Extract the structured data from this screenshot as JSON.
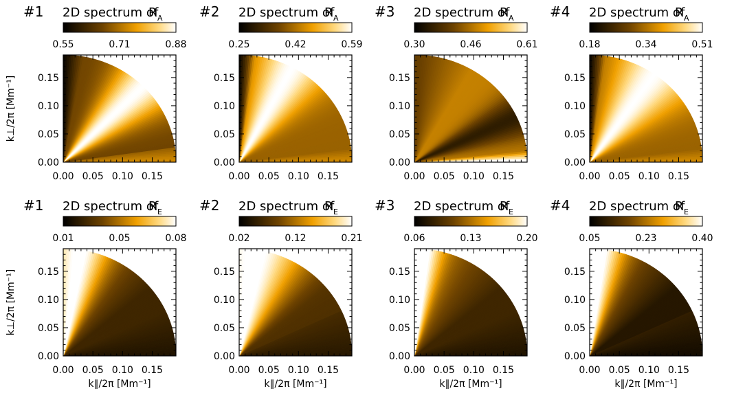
{
  "chart_data": [
    {
      "type": "heatmap",
      "panel": "#1",
      "title_prefix": "2D spectrum of ",
      "quantity": "R",
      "subscript": "A",
      "colorbar_ticks": [
        "0.55",
        "0.71",
        "0.88"
      ],
      "vmin": 0.55,
      "vmax": 0.88,
      "pattern": "ridge",
      "ridge_deg": 45,
      "ridge_width_deg": 16,
      "base": 0.35,
      "edge_dark_deg": 10,
      "xlabel": "",
      "ylabel": "k⊥/2π [Mm⁻¹]",
      "xticks": [
        "0.00",
        "0.05",
        "0.10",
        "0.15"
      ],
      "yticks": [
        "0.00",
        "0.05",
        "0.10",
        "0.15"
      ],
      "xlim": [
        0,
        0.19
      ],
      "ylim": [
        0,
        0.19
      ]
    },
    {
      "type": "heatmap",
      "panel": "#2",
      "title_prefix": "2D spectrum of ",
      "quantity": "R",
      "subscript": "A",
      "colorbar_ticks": [
        "0.25",
        "0.42",
        "0.59"
      ],
      "vmin": 0.25,
      "vmax": 0.59,
      "pattern": "ridge",
      "ridge_deg": 62,
      "ridge_width_deg": 18,
      "base": 0.45,
      "edge_dark_deg": 8,
      "xlabel": "",
      "ylabel": "",
      "xticks": [
        "0.00",
        "0.05",
        "0.10",
        "0.15"
      ],
      "yticks": [
        "0.00",
        "0.05",
        "0.10",
        "0.15"
      ],
      "xlim": [
        0,
        0.19
      ],
      "ylim": [
        0,
        0.19
      ]
    },
    {
      "type": "heatmap",
      "panel": "#3",
      "title_prefix": "2D spectrum of ",
      "quantity": "R",
      "subscript": "A",
      "colorbar_ticks": [
        "0.30",
        "0.46",
        "0.61"
      ],
      "vmin": 0.3,
      "vmax": 0.61,
      "pattern": "dark",
      "ridge_deg": 25,
      "ridge_width_deg": 12,
      "base": 0.25,
      "edge_dark_deg": 0,
      "xlabel": "",
      "ylabel": "",
      "xticks": [
        "0.00",
        "0.05",
        "0.10",
        "0.15"
      ],
      "yticks": [
        "0.00",
        "0.05",
        "0.10",
        "0.15"
      ],
      "xlim": [
        0,
        0.19
      ],
      "ylim": [
        0,
        0.19
      ]
    },
    {
      "type": "heatmap",
      "panel": "#4",
      "title_prefix": "2D spectrum of ",
      "quantity": "R",
      "subscript": "A",
      "colorbar_ticks": [
        "0.18",
        "0.34",
        "0.51"
      ],
      "vmin": 0.18,
      "vmax": 0.51,
      "pattern": "ridge",
      "ridge_deg": 55,
      "ridge_width_deg": 20,
      "base": 0.45,
      "edge_dark_deg": 8,
      "xlabel": "",
      "ylabel": "",
      "xticks": [
        "0.00",
        "0.05",
        "0.10",
        "0.15"
      ],
      "yticks": [
        "0.00",
        "0.05",
        "0.10",
        "0.15"
      ],
      "xlim": [
        0,
        0.19
      ],
      "ylim": [
        0,
        0.19
      ]
    },
    {
      "type": "heatmap",
      "panel": "#1",
      "title_prefix": "2D spectrum of ",
      "quantity": "R",
      "subscript": "E",
      "colorbar_ticks": [
        "0.01",
        "0.05",
        "0.08"
      ],
      "vmin": 0.01,
      "vmax": 0.08,
      "pattern": "topbright",
      "ridge_deg": 80,
      "ridge_width_deg": 14,
      "base": 0.2,
      "edge_dark_deg": 0,
      "xlabel": "k∥/2π [Mm⁻¹]",
      "ylabel": "k⊥/2π [Mm⁻¹]",
      "xticks": [
        "0.00",
        "0.05",
        "0.10",
        "0.15"
      ],
      "yticks": [
        "0.00",
        "0.05",
        "0.10",
        "0.15"
      ],
      "xlim": [
        0,
        0.19
      ],
      "ylim": [
        0,
        0.19
      ]
    },
    {
      "type": "heatmap",
      "panel": "#2",
      "title_prefix": "2D spectrum of ",
      "quantity": "R",
      "subscript": "E",
      "colorbar_ticks": [
        "0.02",
        "0.12",
        "0.21"
      ],
      "vmin": 0.02,
      "vmax": 0.21,
      "pattern": "topbright",
      "ridge_deg": 78,
      "ridge_width_deg": 22,
      "base": 0.25,
      "edge_dark_deg": 0,
      "xlabel": "k∥/2π [Mm⁻¹]",
      "ylabel": "",
      "xticks": [
        "0.00",
        "0.05",
        "0.10",
        "0.15"
      ],
      "yticks": [
        "0.00",
        "0.05",
        "0.10",
        "0.15"
      ],
      "xlim": [
        0,
        0.19
      ],
      "ylim": [
        0,
        0.19
      ]
    },
    {
      "type": "heatmap",
      "panel": "#3",
      "title_prefix": "2D spectrum of ",
      "quantity": "R",
      "subscript": "E",
      "colorbar_ticks": [
        "0.06",
        "0.13",
        "0.20"
      ],
      "vmin": 0.06,
      "vmax": 0.2,
      "pattern": "topbright",
      "ridge_deg": 85,
      "ridge_width_deg": 10,
      "base": 0.2,
      "edge_dark_deg": 0,
      "xlabel": "k∥/2π [Mm⁻¹]",
      "ylabel": "",
      "xticks": [
        "0.00",
        "0.05",
        "0.10",
        "0.15"
      ],
      "yticks": [
        "0.00",
        "0.05",
        "0.10",
        "0.15"
      ],
      "xlim": [
        0,
        0.19
      ],
      "ylim": [
        0,
        0.19
      ]
    },
    {
      "type": "heatmap",
      "panel": "#4",
      "title_prefix": "2D spectrum of ",
      "quantity": "R",
      "subscript": "E",
      "colorbar_ticks": [
        "0.05",
        "0.23",
        "0.40"
      ],
      "vmin": 0.05,
      "vmax": 0.4,
      "pattern": "topbright",
      "ridge_deg": 84,
      "ridge_width_deg": 12,
      "base": 0.12,
      "edge_dark_deg": 0,
      "xlabel": "k∥/2π [Mm⁻¹]",
      "ylabel": "",
      "xticks": [
        "0.00",
        "0.05",
        "0.10",
        "0.15"
      ],
      "yticks": [
        "0.00",
        "0.05",
        "0.10",
        "0.15"
      ],
      "xlim": [
        0,
        0.19
      ],
      "ylim": [
        0,
        0.19
      ]
    }
  ]
}
